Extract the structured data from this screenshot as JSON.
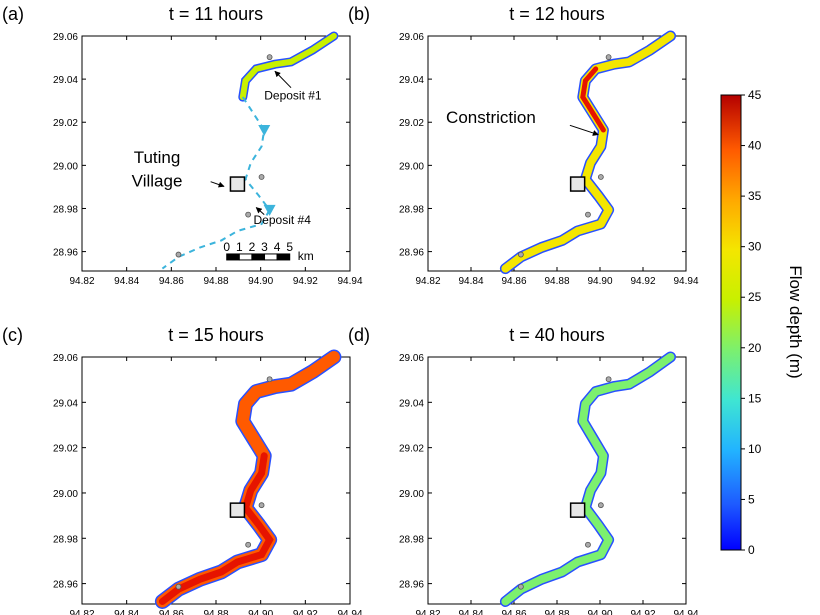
{
  "chart_data": {
    "type": "heatmap",
    "panels": [
      {
        "id": "a",
        "label": "(a)",
        "title": "t = 11 hours"
      },
      {
        "id": "b",
        "label": "(b)",
        "title": "t = 12 hours"
      },
      {
        "id": "c",
        "label": "(c)",
        "title": "t = 15 hours"
      },
      {
        "id": "d",
        "label": "(d)",
        "title": "t = 40 hours"
      }
    ],
    "x_ticks": [
      "94.82",
      "94.84",
      "94.86",
      "94.88",
      "94.90",
      "94.92",
      "94.94"
    ],
    "y_ticks": [
      "29.06",
      "29.04",
      "29.02",
      "29.00",
      "28.98",
      "28.96"
    ],
    "xlim": [
      94.82,
      94.94
    ],
    "ylim": [
      28.95,
      29.06
    ],
    "annotations": {
      "deposit1": "Deposit #1",
      "deposit4": "Deposit #4",
      "village_line1": "Tuting",
      "village_line2": "Village",
      "constriction": "Constriction"
    },
    "scale_bar": {
      "ticks": [
        "0",
        "1",
        "2",
        "3",
        "4",
        "5"
      ],
      "unit": "km"
    },
    "colorbar": {
      "label": "Flow depth (m)",
      "min": 0,
      "max": 45,
      "ticks": [
        "0",
        "5",
        "10",
        "15",
        "20",
        "25",
        "30",
        "35",
        "40",
        "45"
      ],
      "colors": [
        "#0000ff",
        "#1e5aff",
        "#22b4ff",
        "#3fe6d2",
        "#7cf06e",
        "#c8f000",
        "#f4e600",
        "#ffa800",
        "#ff5a00",
        "#e61400",
        "#b40000"
      ]
    },
    "flow_depth_mean_m": {
      "a": 22,
      "b": 28,
      "c": 36,
      "d": 19
    }
  }
}
